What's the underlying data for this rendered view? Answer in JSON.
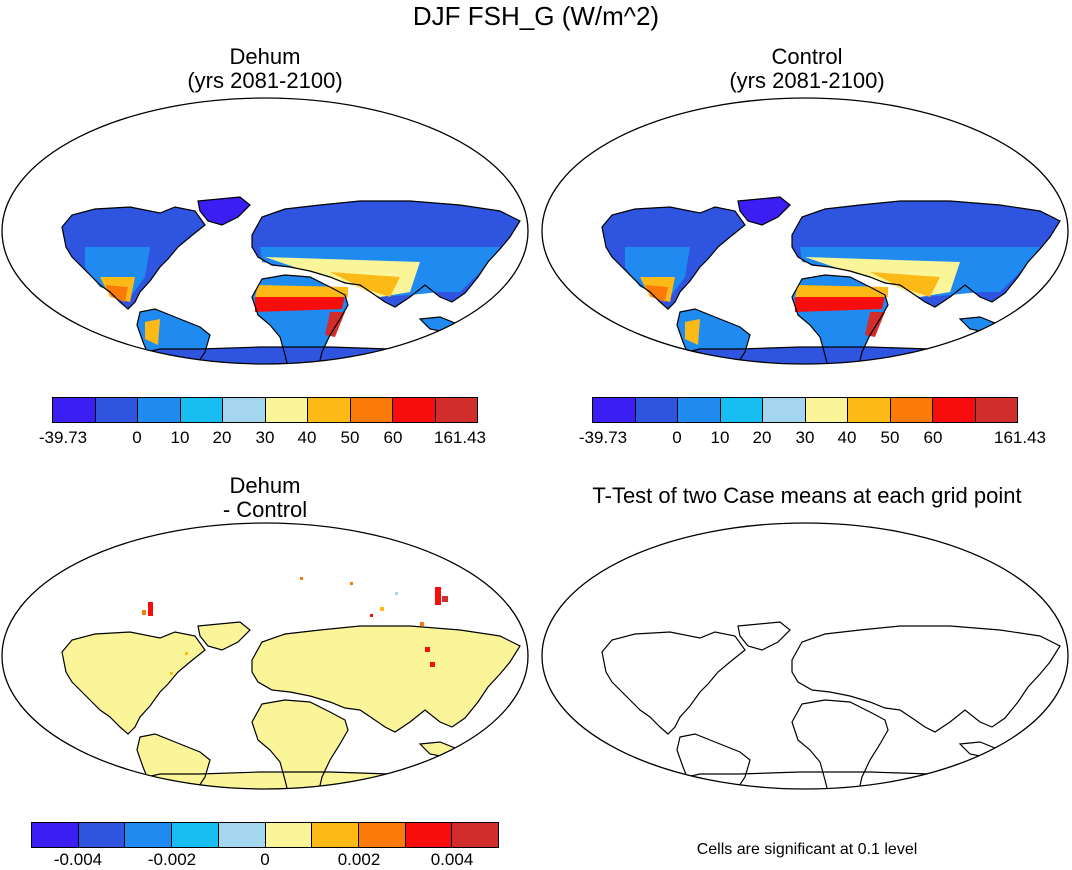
{
  "figure": {
    "title": "DJF FSH_G (W/m^2)",
    "panels": [
      {
        "id": "dehum",
        "title_line1": "Dehum",
        "title_line2": "(yrs 2081-2100)"
      },
      {
        "id": "control",
        "title_line1": "Control",
        "title_line2": "(yrs 2081-2100)"
      },
      {
        "id": "diff",
        "title_line1": "Dehum",
        "title_line2": "- Control"
      },
      {
        "id": "ttest",
        "title_line1": "T-Test of two Case means at each grid point"
      }
    ],
    "note": "Cells are significant at 0.1 level"
  },
  "chart_data": [
    {
      "type": "heatmap",
      "title": "Dehum (yrs 2081-2100)",
      "projection": "Robinson",
      "colorbar_labels": [
        "-39.73",
        "0",
        "10",
        "20",
        "30",
        "40",
        "50",
        "60",
        "161.43"
      ],
      "colorbar_levels": [
        -39.73,
        0,
        10,
        20,
        30,
        40,
        50,
        60,
        161.43
      ],
      "colors": [
        "#3b1ef2",
        "#2f55e0",
        "#1f8bf0",
        "#18bdf2",
        "#a5d6f0",
        "#fbf59a",
        "#fdb915",
        "#fa7a0a",
        "#f80d0d",
        "#d22d2d"
      ]
    },
    {
      "type": "heatmap",
      "title": "Control (yrs 2081-2100)",
      "projection": "Robinson",
      "colorbar_labels": [
        "-39.73",
        "0",
        "10",
        "20",
        "30",
        "40",
        "50",
        "60",
        "161.43"
      ],
      "colorbar_levels": [
        -39.73,
        0,
        10,
        20,
        30,
        40,
        50,
        60,
        161.43
      ],
      "colors": [
        "#3b1ef2",
        "#2f55e0",
        "#1f8bf0",
        "#18bdf2",
        "#a5d6f0",
        "#fbf59a",
        "#fdb915",
        "#fa7a0a",
        "#f80d0d",
        "#d22d2d"
      ]
    },
    {
      "type": "heatmap",
      "title": "Dehum - Control",
      "projection": "Robinson",
      "colorbar_labels": [
        "-0.004",
        "-0.002",
        "0",
        "0.002",
        "0.004"
      ],
      "colorbar_levels": [
        -0.005,
        -0.004,
        -0.003,
        -0.002,
        -0.001,
        0,
        0.001,
        0.002,
        0.003,
        0.004,
        0.005
      ],
      "colors": [
        "#3b1ef2",
        "#2f55e0",
        "#1f8bf0",
        "#18bdf2",
        "#a5d6f0",
        "#fbf59a",
        "#fdb915",
        "#fa7a0a",
        "#f80d0d",
        "#d22d2d"
      ]
    },
    {
      "type": "heatmap",
      "title": "T-Test of two Case means at each grid point",
      "projection": "Robinson",
      "significance_level": 0.1,
      "significant_cells": 0
    }
  ]
}
